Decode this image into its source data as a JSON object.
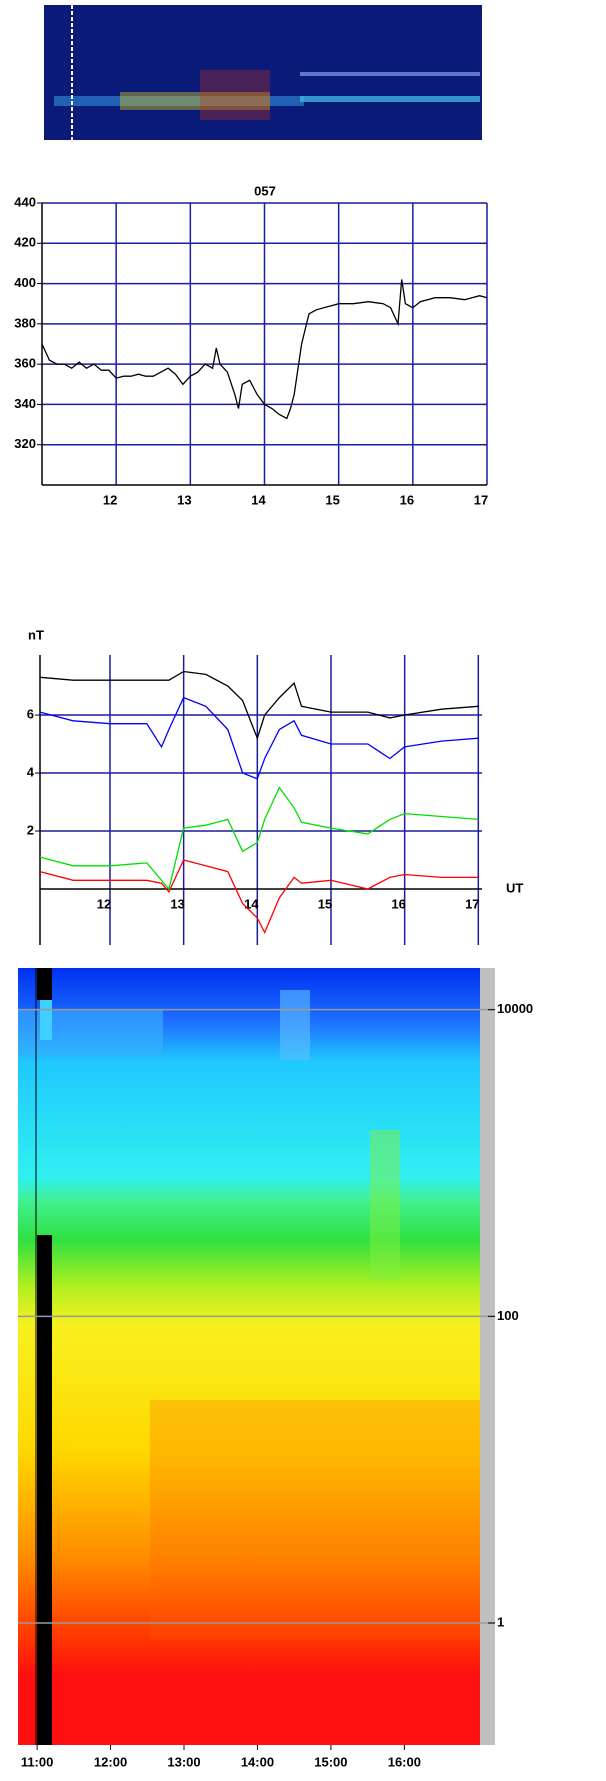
{
  "chart_data": [
    {
      "type": "line",
      "title": "057",
      "x": [
        11.0,
        11.1,
        11.2,
        11.3,
        11.4,
        11.5,
        11.6,
        11.7,
        11.8,
        11.9,
        12.0,
        12.1,
        12.2,
        12.3,
        12.4,
        12.5,
        12.6,
        12.7,
        12.8,
        12.9,
        13.0,
        13.1,
        13.2,
        13.3,
        13.35,
        13.4,
        13.5,
        13.6,
        13.65,
        13.7,
        13.8,
        13.9,
        14.0,
        14.1,
        14.2,
        14.3,
        14.35,
        14.4,
        14.5,
        14.6,
        14.7,
        14.8,
        14.9,
        15.0,
        15.2,
        15.4,
        15.6,
        15.7,
        15.8,
        15.85,
        15.9,
        16.0,
        16.1,
        16.3,
        16.5,
        16.7,
        16.9,
        17.0
      ],
      "series": [
        {
          "color": "#000000",
          "values": [
            370,
            362,
            360,
            360,
            358,
            361,
            358,
            360,
            357,
            357,
            353,
            354,
            354,
            355,
            354,
            354,
            356,
            358,
            355,
            350,
            354,
            356,
            360,
            358,
            368,
            360,
            356,
            345,
            338,
            350,
            352,
            345,
            340,
            338,
            335,
            333,
            338,
            345,
            370,
            385,
            387,
            388,
            389,
            390,
            390,
            391,
            390,
            388,
            380,
            402,
            390,
            388,
            391,
            393,
            393,
            392,
            394,
            393
          ]
        }
      ],
      "xlim": [
        11,
        17
      ],
      "ylim": [
        300,
        440
      ],
      "xticks": [
        12,
        13,
        14,
        15,
        16,
        17
      ],
      "yticks": [
        320,
        340,
        360,
        380,
        400,
        420,
        440
      ],
      "grid": true,
      "grid_color": "#1c1c9c"
    },
    {
      "type": "line",
      "y_label": "nT",
      "x_label": "UT",
      "x": [
        11.05,
        11.5,
        12,
        12.5,
        12.7,
        12.8,
        13,
        13.3,
        13.6,
        13.8,
        14,
        14.1,
        14.3,
        14.5,
        14.6,
        15,
        15.5,
        15.8,
        16,
        16.5,
        17
      ],
      "series": [
        {
          "color": "#000000",
          "values": [
            7.3,
            7.2,
            7.2,
            7.2,
            7.2,
            7.2,
            7.5,
            7.4,
            7.0,
            6.5,
            5.2,
            6.0,
            6.6,
            7.1,
            6.3,
            6.1,
            6.1,
            5.9,
            6.0,
            6.2,
            6.3
          ]
        },
        {
          "color": "#0000ff",
          "values": [
            6.1,
            5.8,
            5.7,
            5.7,
            4.9,
            5.5,
            6.6,
            6.3,
            5.5,
            4.0,
            3.8,
            4.5,
            5.5,
            5.8,
            5.3,
            5.0,
            5.0,
            4.5,
            4.9,
            5.1,
            5.2
          ]
        },
        {
          "color": "#00e000",
          "values": [
            1.1,
            0.8,
            0.8,
            0.9,
            0.3,
            0.0,
            2.1,
            2.2,
            2.4,
            1.3,
            1.6,
            2.4,
            3.5,
            2.8,
            2.3,
            2.1,
            1.9,
            2.4,
            2.6,
            2.5,
            2.4
          ]
        },
        {
          "color": "#ff0000",
          "values": [
            0.6,
            0.3,
            0.3,
            0.3,
            0.2,
            -0.1,
            1.0,
            0.8,
            0.6,
            -0.5,
            -1.0,
            -1.5,
            -0.3,
            0.4,
            0.2,
            0.3,
            0.0,
            0.4,
            0.5,
            0.4,
            0.4
          ]
        }
      ],
      "xlim": [
        11.05,
        17.05
      ],
      "ylim": [
        -1.93,
        8.07
      ],
      "xticks": [
        12,
        13,
        14,
        15,
        16,
        17
      ],
      "yticks": [
        2,
        4,
        6
      ],
      "grid": true,
      "grid_color": "#1c1c9c"
    },
    {
      "type": "spectrogram",
      "log_y": true,
      "xlim": [
        10.74,
        17.03
      ],
      "ylim": [
        0.16,
        18700
      ],
      "xticks": [
        {
          "value": 11,
          "label": "11:00"
        },
        {
          "value": 12,
          "label": "12:00"
        },
        {
          "value": 13,
          "label": "13:00"
        },
        {
          "value": 14,
          "label": "14:00"
        },
        {
          "value": 15,
          "label": "15:00"
        },
        {
          "value": 16,
          "label": "16:00"
        }
      ],
      "yticks": [
        1,
        100,
        10000
      ],
      "grid": true,
      "grid_color": "#999999"
    }
  ]
}
